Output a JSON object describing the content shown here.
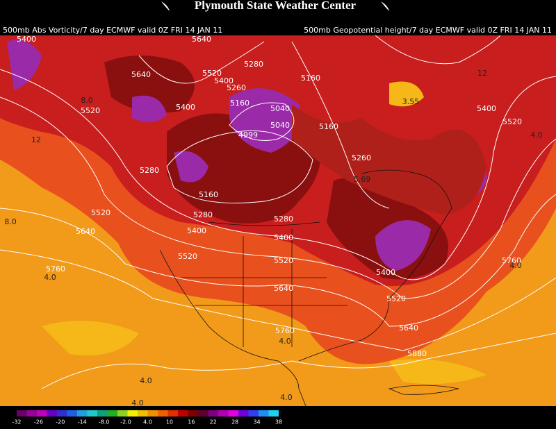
{
  "header": {
    "title": "Plymouth State Weather Center",
    "left_caption": "500mb Abs Vorticity/7 day ECMWF valid 0Z FRI 14 JAN 11",
    "right_caption": "500mb Geopotential height/7 day ECMWF valid 0Z FRI 14 JAN 11"
  },
  "height_labels": [
    "5400",
    "5640",
    "5520",
    "5280",
    "5400",
    "5260",
    "5640",
    "5160",
    "5400",
    "5160",
    "5040",
    "5040",
    "4999",
    "5160",
    "5280",
    "5160",
    "5280",
    "5400",
    "5520",
    "5640",
    "5280",
    "5400",
    "5520",
    "5520",
    "5640",
    "5760",
    "5760",
    "5260",
    "5400",
    "5520",
    "5400",
    "5520",
    "5640",
    "5760",
    "5880",
    "5520"
  ],
  "vorticity_labels": [
    "8.0",
    "12",
    "8.0",
    "4.0",
    "4.0",
    "4.0",
    "4.0",
    "4.0",
    "4.0",
    "4.0",
    "3.55",
    "12",
    "5.69"
  ],
  "colorbar": {
    "labels": [
      "-32",
      "-26",
      "-20",
      "-14",
      "-8.0",
      "-2.0",
      "4.0",
      "10",
      "16",
      "22",
      "28",
      "34",
      "38"
    ]
  }
}
